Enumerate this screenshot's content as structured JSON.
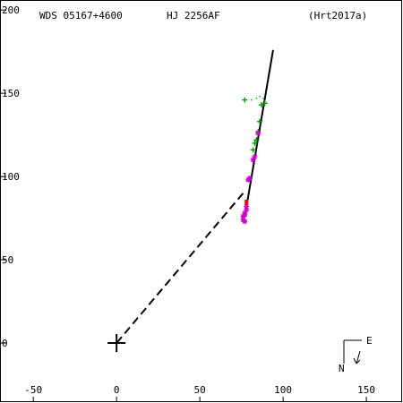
{
  "header": {
    "wds_id": "WDS 05167+4600",
    "pair_name": "HJ 2256AF",
    "reference": "(Hrt2017a)"
  },
  "compass": {
    "east_label": "E",
    "north_label": "N"
  },
  "colors": {
    "axes": "#000000",
    "orbit": "#000000",
    "primary_marker": "#000000",
    "obs_green": "#009900",
    "obs_magenta": "#cc00cc",
    "obs_red": "#ff0000",
    "residual_dots": "#00aa00"
  },
  "chart_data": {
    "type": "scatter",
    "title": "",
    "xlabel": "",
    "ylabel": "",
    "xlim": [
      -70,
      172
    ],
    "ylim": [
      -36,
      206
    ],
    "x_ticks": [
      -50,
      0,
      50,
      100,
      150
    ],
    "x_tick_labels": [
      "-50",
      "0",
      "50",
      "100",
      "150"
    ],
    "y_ticks": [
      0,
      50,
      100,
      150,
      200
    ],
    "y_tick_labels": [
      "0",
      "50",
      "100",
      "150",
      "200"
    ],
    "grid": false,
    "primary": {
      "x": 0,
      "y": 0
    },
    "orbit_line": [
      [
        77,
        76
      ],
      [
        94,
        176
      ]
    ],
    "connector_line": [
      [
        0,
        0
      ],
      [
        76,
        90
      ]
    ],
    "series": [
      {
        "marker": "plus",
        "color_key": "obs_green",
        "points": [
          [
            77,
            146
          ],
          [
            89,
            144
          ],
          [
            87,
            143
          ],
          [
            86,
            133
          ],
          [
            85,
            127
          ],
          [
            84,
            122
          ],
          [
            83,
            120
          ],
          [
            82,
            116
          ]
        ]
      },
      {
        "marker": "star",
        "color_key": "obs_magenta",
        "points": [
          [
            85,
            126
          ],
          [
            83,
            112
          ],
          [
            82,
            110
          ],
          [
            80,
            99
          ],
          [
            79,
            98
          ],
          [
            78,
            82
          ],
          [
            78,
            80
          ],
          [
            77,
            78
          ],
          [
            77,
            77
          ],
          [
            76,
            76
          ],
          [
            76,
            74
          ],
          [
            77,
            73
          ]
        ]
      },
      {
        "marker": "square",
        "color_key": "obs_red",
        "points": [
          [
            78,
            85
          ],
          [
            78,
            84
          ]
        ]
      }
    ],
    "residual_dots": [
      [
        81,
        146
      ],
      [
        84,
        147
      ],
      [
        86,
        148
      ],
      [
        88,
        147
      ]
    ]
  }
}
